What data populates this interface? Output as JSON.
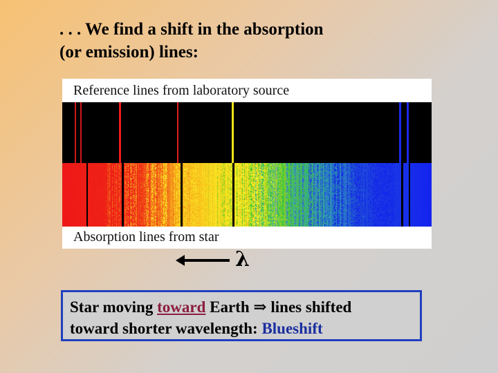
{
  "slide": {
    "title_line1": ". . . We find a shift in the absorption",
    "title_line2": "(or emission) lines:"
  },
  "figure": {
    "reference_label": "Reference lines from laboratory source",
    "absorption_label": "Absorption lines from star",
    "wavelength_symbol": "λ"
  },
  "caption": {
    "p1": "Star moving ",
    "toward": "toward",
    "p2": " Earth ",
    "implies": "⇒",
    "p3": " lines shifted",
    "line2": "toward shorter wavelength: ",
    "blueshift": "Blueshift"
  },
  "colors": {
    "caption_border": "#1f3fbf",
    "toward_text": "#8b1e3f",
    "blueshift_text": "#1b2fa0"
  }
}
